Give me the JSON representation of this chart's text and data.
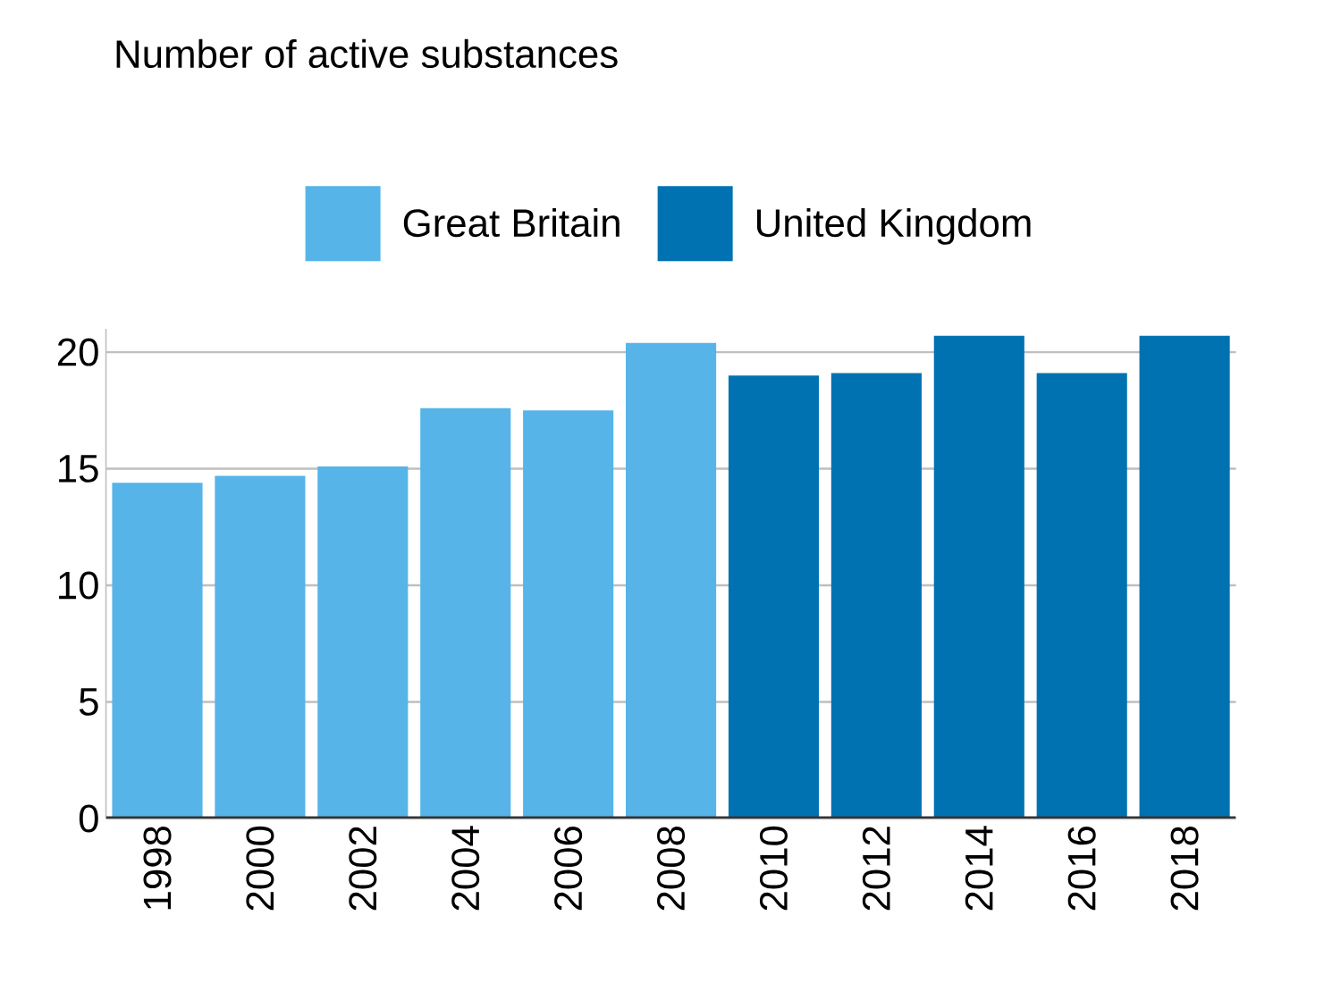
{
  "chart_data": {
    "type": "bar",
    "title": "Number of active substances",
    "categories": [
      "1998",
      "2000",
      "2002",
      "2004",
      "2006",
      "2008",
      "2010",
      "2012",
      "2014",
      "2016",
      "2018"
    ],
    "series": [
      {
        "name": "Great Britain",
        "color": "#56b4e9",
        "values": [
          14.4,
          14.7,
          15.1,
          17.6,
          17.5,
          20.4,
          null,
          null,
          null,
          null,
          null
        ]
      },
      {
        "name": "United Kingdom",
        "color": "#0072b2",
        "values": [
          null,
          null,
          null,
          null,
          null,
          null,
          19.0,
          19.1,
          20.7,
          19.1,
          20.7
        ]
      }
    ],
    "ylim": [
      0,
      21
    ],
    "yticks": [
      0,
      5,
      10,
      15,
      20
    ],
    "grid": "y",
    "legend": "top"
  }
}
